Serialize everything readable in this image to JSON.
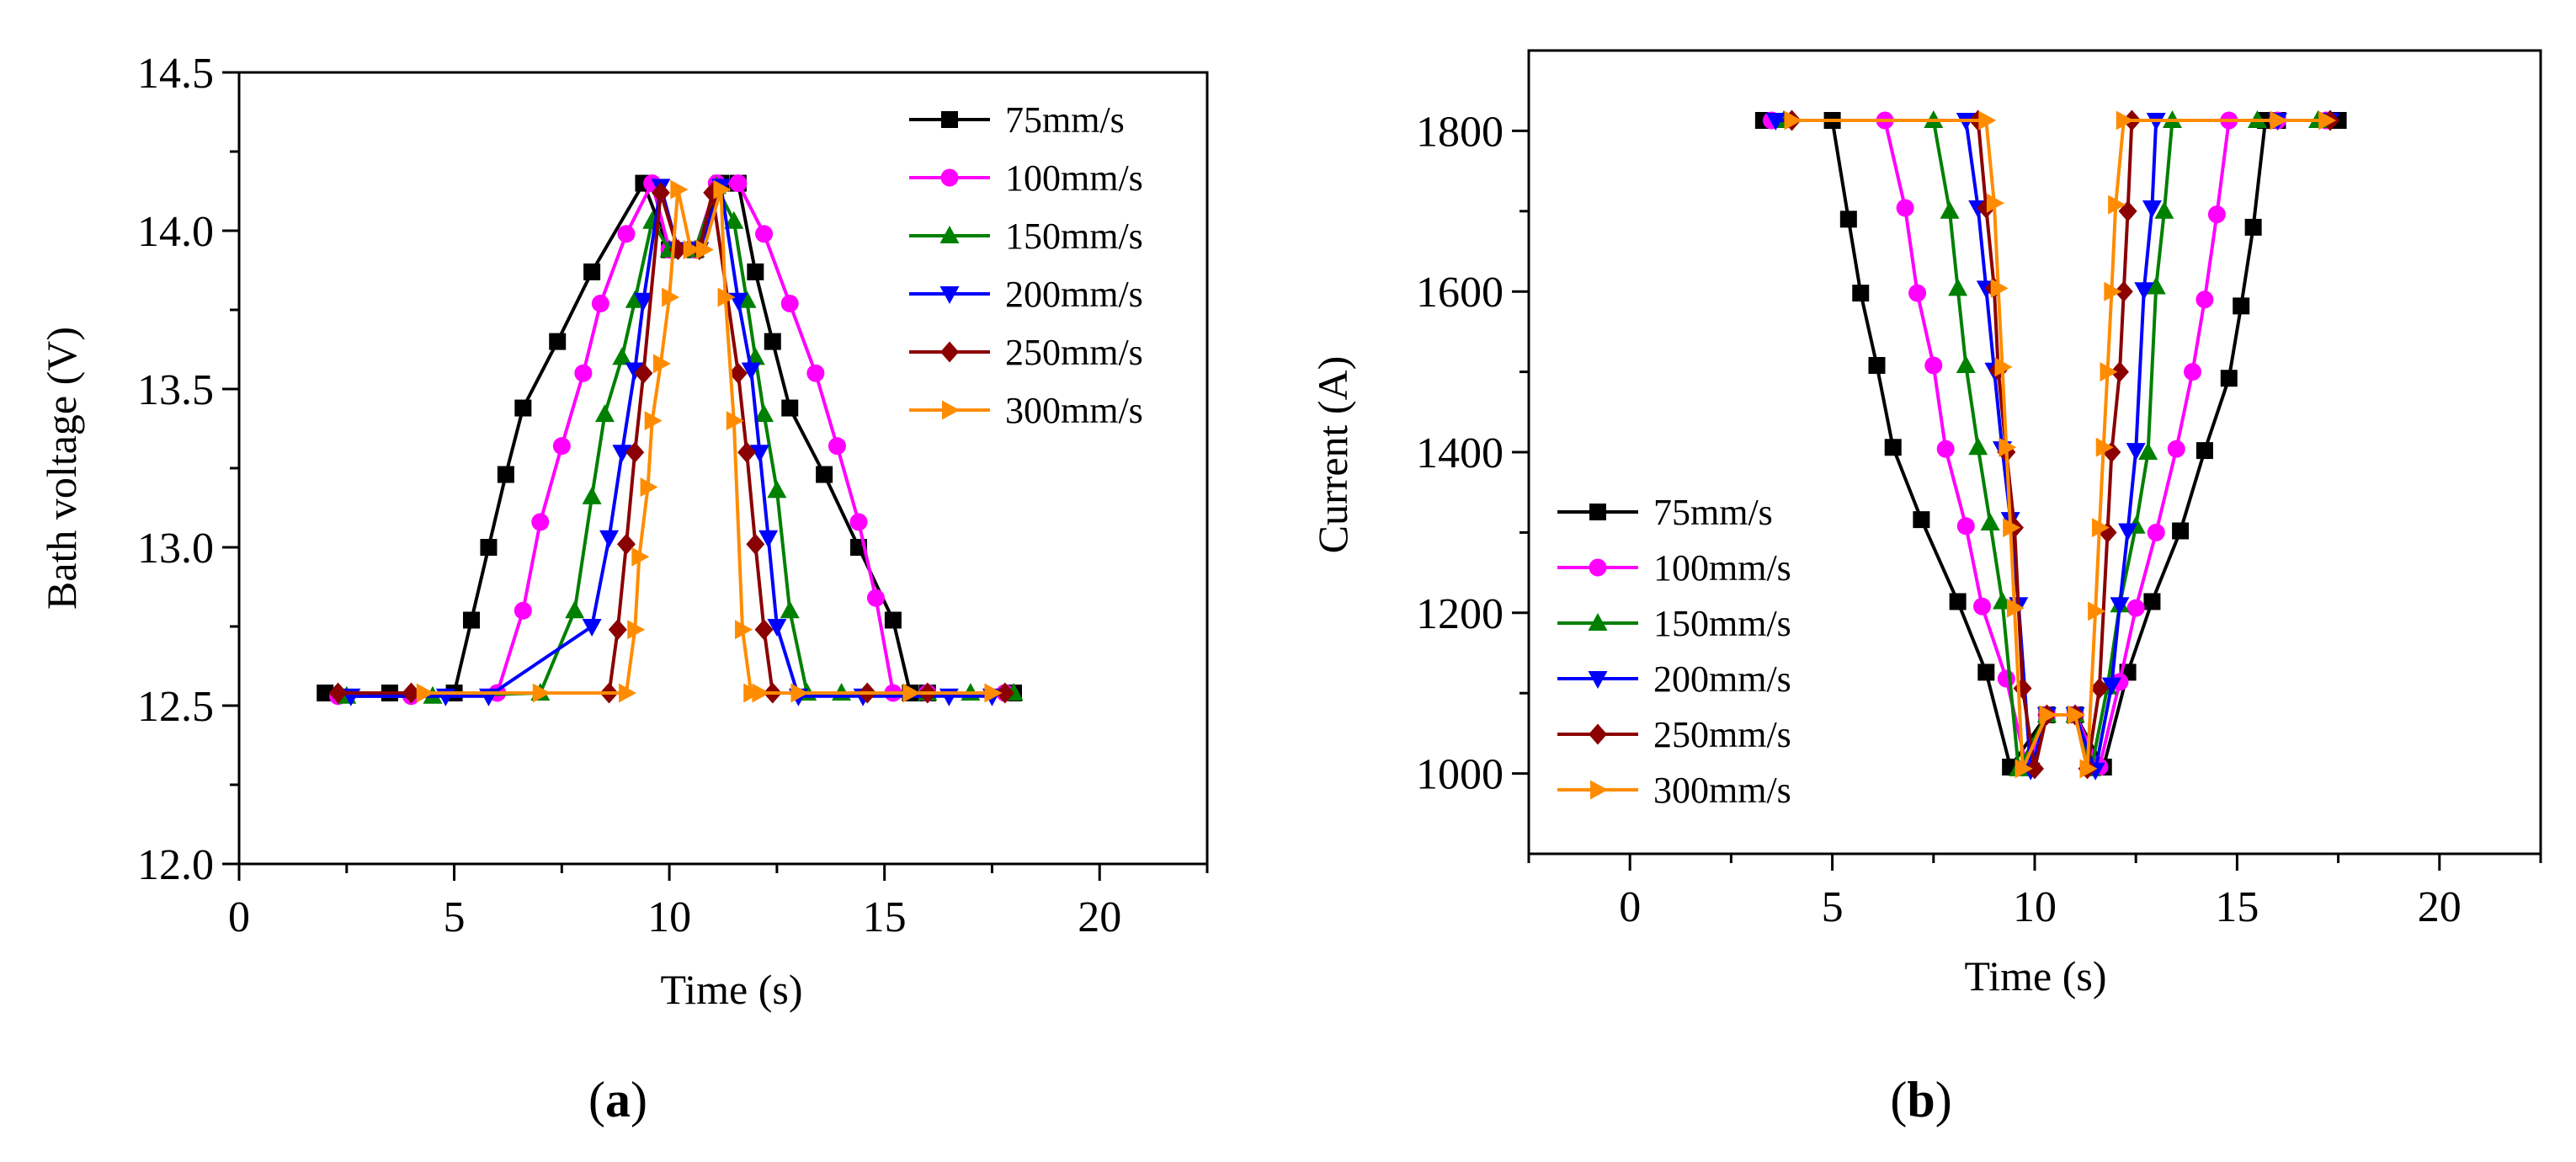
{
  "chart_data": [
    {
      "type": "line",
      "panel_id": "a",
      "panel_label": "(a)",
      "title": "",
      "xlabel": "Time (s)",
      "ylabel": "Bath voltage (V)",
      "xlim": [
        0,
        22.5
      ],
      "ylim": [
        12.0,
        14.5
      ],
      "xticks": [
        0,
        5,
        10,
        15,
        20
      ],
      "xtick_labels": [
        "0",
        "5",
        "10",
        "15",
        "20"
      ],
      "yticks": [
        12.0,
        12.5,
        13.0,
        13.5,
        14.0,
        14.5
      ],
      "ytick_labels": [
        "12.0",
        "12.5",
        "13.0",
        "13.5",
        "14.0",
        "14.5"
      ],
      "legend_position": "top-right",
      "series": [
        {
          "name": "75mm/s",
          "color": "#000000",
          "marker": "square",
          "x": [
            2.0,
            3.5,
            5.0,
            5.4,
            5.8,
            6.2,
            6.6,
            7.4,
            8.2,
            9.4,
            10.0,
            10.6,
            11.2,
            11.6,
            12.0,
            12.4,
            12.8,
            13.6,
            14.4,
            15.2,
            15.6,
            16.0,
            18.0
          ],
          "y": [
            12.54,
            12.54,
            12.54,
            12.77,
            13.0,
            13.23,
            13.44,
            13.65,
            13.87,
            14.15,
            13.94,
            13.94,
            14.15,
            14.15,
            13.87,
            13.65,
            13.44,
            13.23,
            13.0,
            12.77,
            12.54,
            12.54,
            12.54
          ]
        },
        {
          "name": "100mm/s",
          "color": "#FF00FF",
          "marker": "circle",
          "x": [
            2.3,
            4.0,
            6.0,
            6.6,
            7.0,
            7.5,
            8.0,
            8.4,
            9.0,
            9.6,
            10.0,
            10.6,
            11.1,
            11.6,
            12.2,
            12.8,
            13.4,
            13.9,
            14.4,
            14.8,
            15.2,
            16.0,
            17.8
          ],
          "y": [
            12.53,
            12.53,
            12.54,
            12.8,
            13.08,
            13.32,
            13.55,
            13.77,
            13.99,
            14.15,
            13.94,
            13.94,
            14.15,
            14.15,
            13.99,
            13.77,
            13.55,
            13.32,
            13.08,
            12.84,
            12.54,
            12.54,
            12.54
          ]
        },
        {
          "name": "150mm/s",
          "color": "#008000",
          "marker": "triangle-up",
          "x": [
            2.5,
            4.5,
            7.0,
            7.8,
            8.2,
            8.5,
            8.9,
            9.2,
            9.6,
            10.0,
            10.6,
            11.1,
            11.5,
            11.8,
            12.0,
            12.2,
            12.5,
            12.8,
            13.2,
            14.0,
            16.0,
            17.0,
            18.0
          ],
          "y": [
            12.53,
            12.53,
            12.54,
            12.8,
            13.16,
            13.42,
            13.6,
            13.78,
            14.03,
            13.94,
            13.94,
            14.14,
            14.03,
            13.78,
            13.6,
            13.42,
            13.18,
            12.8,
            12.54,
            12.54,
            12.54,
            12.54,
            12.54
          ]
        },
        {
          "name": "200mm/s",
          "color": "#0000FF",
          "marker": "triangle-down",
          "x": [
            2.6,
            4.8,
            5.8,
            8.2,
            8.6,
            8.9,
            9.2,
            9.4,
            9.8,
            10.2,
            10.7,
            11.2,
            11.6,
            11.9,
            12.1,
            12.3,
            12.5,
            13.0,
            14.5,
            16.5,
            17.5
          ],
          "y": [
            12.53,
            12.53,
            12.53,
            12.75,
            13.03,
            13.3,
            13.56,
            13.78,
            14.14,
            13.94,
            13.94,
            14.14,
            13.78,
            13.56,
            13.3,
            13.03,
            12.75,
            12.53,
            12.53,
            12.53,
            12.53
          ]
        },
        {
          "name": "250mm/s",
          "color": "#8B0000",
          "marker": "diamond",
          "x": [
            2.3,
            4.0,
            8.6,
            8.8,
            9.0,
            9.2,
            9.4,
            9.8,
            10.2,
            10.7,
            11.0,
            11.6,
            11.8,
            12.0,
            12.2,
            12.4,
            14.6,
            16.0,
            17.8
          ],
          "y": [
            12.54,
            12.54,
            12.54,
            12.74,
            13.01,
            13.3,
            13.55,
            14.12,
            13.94,
            13.94,
            14.12,
            13.55,
            13.3,
            13.01,
            12.74,
            12.54,
            12.54,
            12.54,
            12.54
          ]
        },
        {
          "name": "300mm/s",
          "color": "#FF8C00",
          "marker": "triangle-right",
          "x": [
            4.3,
            7.0,
            9.0,
            9.2,
            9.3,
            9.5,
            9.6,
            9.8,
            10.0,
            10.2,
            10.5,
            10.8,
            11.2,
            11.3,
            11.5,
            11.7,
            11.9,
            12.1,
            13.0,
            15.6,
            17.5
          ],
          "y": [
            12.54,
            12.54,
            12.54,
            12.74,
            12.97,
            13.19,
            13.4,
            13.58,
            13.79,
            14.13,
            13.94,
            13.94,
            14.13,
            13.79,
            13.4,
            12.74,
            12.54,
            12.54,
            12.54,
            12.54,
            12.54
          ]
        }
      ]
    },
    {
      "type": "line",
      "panel_id": "b",
      "panel_label": "(b)",
      "title": "",
      "xlabel": "Time (s)",
      "ylabel": "Current (A)",
      "xlim": [
        -2.5,
        22.5
      ],
      "ylim": [
        900,
        1900
      ],
      "xticks": [
        0,
        5,
        10,
        15,
        20
      ],
      "xtick_labels": [
        "0",
        "5",
        "10",
        "15",
        "20"
      ],
      "yticks": [
        1000,
        1200,
        1400,
        1600,
        1800
      ],
      "ytick_labels": [
        "1000",
        "1200",
        "1400",
        "1600",
        "1800"
      ],
      "legend_position": "bottom-left",
      "series": [
        {
          "name": "75mm/s",
          "color": "#000000",
          "marker": "square",
          "x": [
            3.3,
            5.0,
            5.4,
            5.7,
            6.1,
            6.5,
            7.2,
            8.1,
            8.8,
            9.4,
            10.3,
            11.0,
            11.7,
            12.3,
            12.9,
            13.6,
            14.2,
            14.8,
            15.1,
            15.4,
            15.7,
            16.0,
            17.5
          ],
          "y": [
            1813,
            1813,
            1690,
            1598,
            1508,
            1406,
            1316,
            1214,
            1126,
            1008,
            1073,
            1073,
            1008,
            1126,
            1214,
            1302,
            1402,
            1492,
            1582,
            1680,
            1813,
            1813,
            1813
          ]
        },
        {
          "name": "100mm/s",
          "color": "#FF00FF",
          "marker": "circle",
          "x": [
            3.5,
            6.3,
            6.8,
            7.1,
            7.5,
            7.8,
            8.3,
            8.7,
            9.3,
            9.8,
            10.3,
            11.0,
            11.6,
            12.1,
            12.5,
            13.0,
            13.5,
            13.9,
            14.2,
            14.5,
            14.8,
            16.0,
            17.2
          ],
          "y": [
            1813,
            1813,
            1704,
            1598,
            1508,
            1404,
            1308,
            1208,
            1118,
            1008,
            1073,
            1073,
            1008,
            1114,
            1206,
            1300,
            1404,
            1500,
            1590,
            1696,
            1813,
            1813,
            1813
          ]
        },
        {
          "name": "150mm/s",
          "color": "#008000",
          "marker": "triangle-up",
          "x": [
            3.8,
            7.5,
            7.9,
            8.1,
            8.3,
            8.6,
            8.9,
            9.2,
            9.6,
            10.3,
            11.0,
            11.4,
            11.8,
            12.1,
            12.5,
            12.8,
            13.0,
            13.2,
            13.4,
            15.5,
            17.0
          ],
          "y": [
            1813,
            1813,
            1700,
            1604,
            1508,
            1406,
            1312,
            1214,
            1006,
            1073,
            1073,
            1006,
            1108,
            1210,
            1308,
            1400,
            1606,
            1700,
            1813,
            1813,
            1813
          ]
        },
        {
          "name": "200mm/s",
          "color": "#0000FF",
          "marker": "triangle-down",
          "x": [
            3.6,
            8.3,
            8.6,
            8.8,
            9.0,
            9.2,
            9.4,
            9.6,
            9.9,
            10.3,
            11.0,
            11.5,
            11.9,
            12.1,
            12.3,
            12.5,
            12.7,
            12.9,
            13.0,
            16.0,
            17.3
          ],
          "y": [
            1813,
            1813,
            1704,
            1604,
            1502,
            1404,
            1316,
            1210,
            1004,
            1073,
            1073,
            1004,
            1110,
            1210,
            1302,
            1402,
            1602,
            1704,
            1813,
            1813,
            1813
          ]
        },
        {
          "name": "250mm/s",
          "color": "#8B0000",
          "marker": "diamond",
          "x": [
            4.0,
            8.6,
            8.8,
            9.0,
            9.1,
            9.3,
            9.5,
            9.7,
            10.0,
            10.3,
            11.0,
            11.3,
            11.6,
            11.8,
            11.9,
            12.1,
            12.2,
            12.3,
            12.4,
            17.3
          ],
          "y": [
            1813,
            1813,
            1704,
            1604,
            1502,
            1400,
            1306,
            1106,
            1006,
            1073,
            1073,
            1006,
            1106,
            1300,
            1400,
            1500,
            1600,
            1700,
            1813,
            1813
          ]
        },
        {
          "name": "300mm/s",
          "color": "#FF8C00",
          "marker": "triangle-right",
          "x": [
            4.0,
            8.8,
            9.0,
            9.1,
            9.2,
            9.3,
            9.4,
            9.5,
            9.7,
            10.3,
            11.0,
            11.3,
            11.5,
            11.6,
            11.7,
            11.8,
            11.9,
            12.0,
            12.2,
            16.0,
            17.2
          ],
          "y": [
            1813,
            1813,
            1710,
            1604,
            1506,
            1406,
            1306,
            1206,
            1006,
            1073,
            1073,
            1006,
            1202,
            1306,
            1406,
            1500,
            1600,
            1708,
            1813,
            1813,
            1813
          ]
        }
      ]
    }
  ]
}
